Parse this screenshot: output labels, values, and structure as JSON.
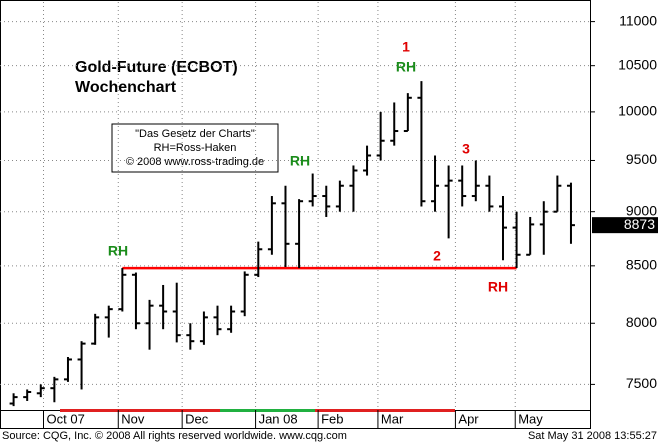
{
  "chart_data": {
    "type": "ohlc",
    "title": "Gold-Future (ECBOT)",
    "subtitle": "Wochenchart",
    "info_box": [
      "\"Das Gesetz der Charts\"",
      "RH=Ross-Haken",
      "© 2008 www.ross-trading.de"
    ],
    "ohlc": [
      [
        7350,
        7430,
        7330,
        7400
      ],
      [
        7400,
        7460,
        7370,
        7440
      ],
      [
        7430,
        7500,
        7400,
        7470
      ],
      [
        7470,
        7560,
        7360,
        7540
      ],
      [
        7540,
        7720,
        7520,
        7700
      ],
      [
        7700,
        7850,
        7460,
        7830
      ],
      [
        7830,
        8080,
        7820,
        8050
      ],
      [
        8050,
        8150,
        7880,
        8120
      ],
      [
        8120,
        8480,
        8100,
        8420
      ],
      [
        8420,
        8440,
        7950,
        8000
      ],
      [
        8000,
        8200,
        7780,
        8150
      ],
      [
        8150,
        8330,
        7950,
        8100
      ],
      [
        8100,
        8350,
        7840,
        7900
      ],
      [
        7900,
        8000,
        7780,
        7850
      ],
      [
        7850,
        8100,
        7820,
        8050
      ],
      [
        8050,
        8150,
        7900,
        7950
      ],
      [
        7950,
        8150,
        7920,
        8100
      ],
      [
        8100,
        8450,
        8060,
        8420
      ],
      [
        8420,
        8720,
        8400,
        8650
      ],
      [
        8650,
        9150,
        8600,
        9080
      ],
      [
        9080,
        9250,
        8490,
        8700
      ],
      [
        8700,
        9120,
        8480,
        9100
      ],
      [
        9100,
        9370,
        9050,
        9150
      ],
      [
        9150,
        9250,
        8950,
        9050
      ],
      [
        9050,
        9300,
        9000,
        9250
      ],
      [
        9250,
        9450,
        9000,
        9400
      ],
      [
        9400,
        9650,
        9350,
        9550
      ],
      [
        9550,
        10000,
        9500,
        9700
      ],
      [
        9700,
        10100,
        9650,
        9800
      ],
      [
        9800,
        10200,
        9800,
        10150
      ],
      [
        10150,
        10330,
        9050,
        9100
      ],
      [
        9100,
        9550,
        9000,
        9250
      ],
      [
        9250,
        9450,
        8750,
        9300
      ],
      [
        9300,
        9450,
        9050,
        9150
      ],
      [
        9150,
        9500,
        9100,
        9250
      ],
      [
        9250,
        9350,
        9000,
        9050
      ],
      [
        9050,
        9150,
        8550,
        8850
      ],
      [
        8850,
        9000,
        8480,
        8600
      ],
      [
        8600,
        8950,
        8600,
        8880
      ],
      [
        8880,
        9100,
        8600,
        9000
      ],
      [
        9000,
        9350,
        9000,
        9250
      ],
      [
        9250,
        9280,
        8700,
        8873
      ]
    ],
    "color": "#000000",
    "log_scale": true,
    "grid": true,
    "ylim": [
      7300,
      11230
    ],
    "yticks": [
      7500,
      8000,
      8500,
      9000,
      9500,
      10000,
      10500,
      11000
    ],
    "xlim": [
      -1,
      42.4
    ],
    "xticks": [
      {
        "value": 2.2,
        "label": "Oct 07"
      },
      {
        "value": 7.7,
        "label": "Nov"
      },
      {
        "value": 12.4,
        "label": "Dec"
      },
      {
        "value": 17.8,
        "label": "Jan 08"
      },
      {
        "value": 22.4,
        "label": "Feb"
      },
      {
        "value": 26.8,
        "label": "Mar"
      },
      {
        "value": 32.5,
        "label": "Apr"
      },
      {
        "value": 36.9,
        "label": "May"
      }
    ],
    "last_price": 8873,
    "support_line": {
      "value": 8480,
      "x": [
        8,
        37
      ],
      "color": "#ff0000"
    },
    "annotations": [
      {
        "text": "RH",
        "color": "#1a8c1a"
      },
      {
        "text": "RH",
        "color": "#1a8c1a"
      },
      {
        "text": "1",
        "color": "#e00000"
      },
      {
        "text": "RH",
        "color": "#1a8c1a"
      },
      {
        "text": "3",
        "color": "#e00000"
      },
      {
        "text": "2",
        "color": "#e00000"
      },
      {
        "text": "RH",
        "color": "#e00000"
      }
    ],
    "source": "Source: CQG, Inc. © 2008 All rights reserved worldwide. www.cqg.com",
    "timestamp": "Sat May 31 2008 13:55:27"
  }
}
